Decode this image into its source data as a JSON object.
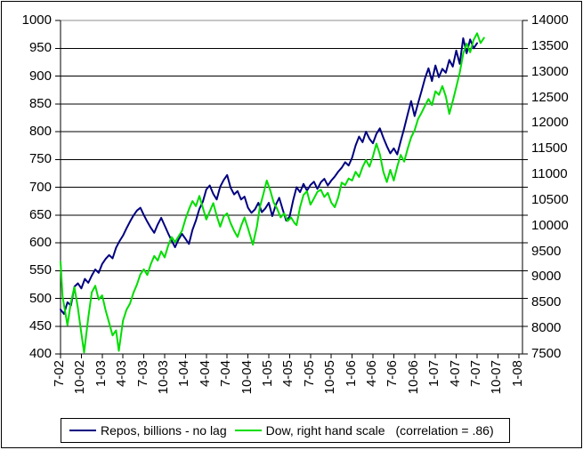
{
  "chart_data": {
    "type": "line",
    "title": "",
    "grid": true,
    "legend_position": "bottom",
    "x_axis": {
      "tick_labels": [
        "7-02",
        "10-02",
        "1-03",
        "4-03",
        "7-03",
        "10-03",
        "1-04",
        "4-04",
        "7-04",
        "10-04",
        "1-05",
        "4-05",
        "7-05",
        "10-05",
        "1-06",
        "4-06",
        "7-06",
        "10-06",
        "1-07",
        "4-07",
        "7-07",
        "10-07",
        "1-08"
      ],
      "tick_unit": "quarterly month-year"
    },
    "left_axis": {
      "min": 400,
      "max": 1000,
      "step": 50,
      "ticks": [
        1000,
        950,
        900,
        850,
        800,
        750,
        700,
        650,
        600,
        550,
        500,
        450,
        400
      ]
    },
    "right_axis": {
      "min": 7500,
      "max": 14000,
      "step": 500,
      "ticks": [
        14000,
        13500,
        13000,
        12500,
        12000,
        11500,
        11000,
        10500,
        10000,
        9500,
        9000,
        8500,
        8000,
        7500
      ]
    },
    "series": [
      {
        "name": "Repos, billions - no lag",
        "color": "#000080",
        "axis": "left",
        "x_unit": "months since Jul-2002",
        "points": [
          [
            0,
            480
          ],
          [
            0.5,
            472
          ],
          [
            1,
            493
          ],
          [
            1.5,
            487
          ],
          [
            2,
            521
          ],
          [
            2.5,
            527
          ],
          [
            3,
            518
          ],
          [
            3.5,
            535
          ],
          [
            4,
            528
          ],
          [
            4.5,
            541
          ],
          [
            5,
            552
          ],
          [
            5.5,
            546
          ],
          [
            6,
            562
          ],
          [
            6.5,
            571
          ],
          [
            7,
            578
          ],
          [
            7.5,
            572
          ],
          [
            8,
            591
          ],
          [
            8.5,
            603
          ],
          [
            9,
            613
          ],
          [
            9.5,
            626
          ],
          [
            10,
            638
          ],
          [
            10.5,
            649
          ],
          [
            11,
            658
          ],
          [
            11.5,
            663
          ],
          [
            12,
            650
          ],
          [
            12.5,
            638
          ],
          [
            13,
            627
          ],
          [
            13.5,
            618
          ],
          [
            14,
            633
          ],
          [
            14.5,
            645
          ],
          [
            15,
            631
          ],
          [
            15.5,
            617
          ],
          [
            16,
            604
          ],
          [
            16.5,
            592
          ],
          [
            17,
            606
          ],
          [
            17.5,
            616
          ],
          [
            18,
            607
          ],
          [
            18.5,
            598
          ],
          [
            19,
            623
          ],
          [
            19.5,
            640
          ],
          [
            20,
            661
          ],
          [
            20.5,
            674
          ],
          [
            21,
            696
          ],
          [
            21.5,
            703
          ],
          [
            22,
            688
          ],
          [
            22.5,
            678
          ],
          [
            23,
            701
          ],
          [
            23.5,
            713
          ],
          [
            24,
            722
          ],
          [
            24.5,
            699
          ],
          [
            25,
            687
          ],
          [
            25.5,
            693
          ],
          [
            26,
            678
          ],
          [
            26.5,
            683
          ],
          [
            27,
            663
          ],
          [
            27.5,
            654
          ],
          [
            28,
            660
          ],
          [
            28.5,
            672
          ],
          [
            29,
            655
          ],
          [
            29.5,
            662
          ],
          [
            30,
            672
          ],
          [
            30.5,
            648
          ],
          [
            31,
            668
          ],
          [
            31.5,
            681
          ],
          [
            32,
            660
          ],
          [
            32.5,
            640
          ],
          [
            33,
            647
          ],
          [
            33.5,
            676
          ],
          [
            34,
            700
          ],
          [
            34.5,
            691
          ],
          [
            35,
            706
          ],
          [
            35.5,
            694
          ],
          [
            36,
            704
          ],
          [
            36.5,
            710
          ],
          [
            37,
            697
          ],
          [
            37.5,
            709
          ],
          [
            38,
            715
          ],
          [
            38.5,
            703
          ],
          [
            39,
            712
          ],
          [
            39.5,
            719
          ],
          [
            40,
            728
          ],
          [
            40.5,
            735
          ],
          [
            41,
            745
          ],
          [
            41.5,
            739
          ],
          [
            42,
            753
          ],
          [
            42.5,
            775
          ],
          [
            43,
            791
          ],
          [
            43.5,
            781
          ],
          [
            44,
            800
          ],
          [
            44.5,
            787
          ],
          [
            45,
            779
          ],
          [
            45.5,
            796
          ],
          [
            46,
            806
          ],
          [
            46.5,
            789
          ],
          [
            47,
            774
          ],
          [
            47.5,
            761
          ],
          [
            48,
            770
          ],
          [
            48.5,
            759
          ],
          [
            49,
            783
          ],
          [
            49.5,
            806
          ],
          [
            50,
            831
          ],
          [
            50.5,
            855
          ],
          [
            51,
            828
          ],
          [
            51.5,
            851
          ],
          [
            52,
            873
          ],
          [
            52.5,
            896
          ],
          [
            53,
            914
          ],
          [
            53.5,
            891
          ],
          [
            54,
            919
          ],
          [
            54.5,
            898
          ],
          [
            55,
            913
          ],
          [
            55.5,
            906
          ],
          [
            56,
            929
          ],
          [
            56.5,
            917
          ],
          [
            57,
            946
          ],
          [
            57.5,
            922
          ],
          [
            58,
            968
          ],
          [
            58.5,
            941
          ],
          [
            59,
            966
          ],
          [
            59.5,
            950
          ],
          [
            60,
            959
          ]
        ]
      },
      {
        "name": "Dow, right hand scale",
        "color": "#00DD00",
        "axis": "right",
        "x_unit": "months since Jul-2002",
        "points": [
          [
            0,
            9300
          ],
          [
            0.3,
            8620
          ],
          [
            1,
            8060
          ],
          [
            1.5,
            8510
          ],
          [
            2,
            8800
          ],
          [
            2.5,
            8400
          ],
          [
            3,
            7900
          ],
          [
            3.4,
            7530
          ],
          [
            4,
            8210
          ],
          [
            4.5,
            8700
          ],
          [
            5,
            8830
          ],
          [
            5.5,
            8560
          ],
          [
            6,
            8640
          ],
          [
            6.5,
            8350
          ],
          [
            7,
            8110
          ],
          [
            7.5,
            7860
          ],
          [
            8,
            7960
          ],
          [
            8.4,
            7560
          ],
          [
            9,
            8150
          ],
          [
            9.5,
            8360
          ],
          [
            10,
            8480
          ],
          [
            10.5,
            8690
          ],
          [
            11,
            8850
          ],
          [
            11.5,
            9050
          ],
          [
            12,
            9150
          ],
          [
            12.5,
            9040
          ],
          [
            13,
            9250
          ],
          [
            13.5,
            9410
          ],
          [
            14,
            9320
          ],
          [
            14.5,
            9500
          ],
          [
            15,
            9380
          ],
          [
            15.5,
            9610
          ],
          [
            16,
            9780
          ],
          [
            16.5,
            9680
          ],
          [
            17,
            9790
          ],
          [
            17.5,
            9900
          ],
          [
            18,
            10130
          ],
          [
            18.5,
            10320
          ],
          [
            19,
            10480
          ],
          [
            19.5,
            10380
          ],
          [
            20,
            10580
          ],
          [
            20.5,
            10350
          ],
          [
            21,
            10120
          ],
          [
            21.5,
            10280
          ],
          [
            22,
            10440
          ],
          [
            22.5,
            10190
          ],
          [
            23,
            9980
          ],
          [
            23.5,
            10180
          ],
          [
            24,
            10240
          ],
          [
            24.5,
            10050
          ],
          [
            25,
            9900
          ],
          [
            25.5,
            9780
          ],
          [
            26,
            9990
          ],
          [
            26.5,
            10160
          ],
          [
            27,
            9950
          ],
          [
            27.7,
            9630
          ],
          [
            28.3,
            9990
          ],
          [
            28.7,
            10360
          ],
          [
            29.2,
            10610
          ],
          [
            29.7,
            10880
          ],
          [
            30.2,
            10690
          ],
          [
            30.7,
            10450
          ],
          [
            31.2,
            10330
          ],
          [
            31.7,
            10160
          ],
          [
            32.2,
            10240
          ],
          [
            32.7,
            10090
          ],
          [
            33.2,
            10160
          ],
          [
            33.7,
            10050
          ],
          [
            34,
            10010
          ],
          [
            34.5,
            10360
          ],
          [
            35,
            10600
          ],
          [
            35.5,
            10670
          ],
          [
            36,
            10410
          ],
          [
            36.5,
            10530
          ],
          [
            37,
            10660
          ],
          [
            37.5,
            10700
          ],
          [
            38,
            10560
          ],
          [
            38.5,
            10640
          ],
          [
            39,
            10450
          ],
          [
            39.5,
            10360
          ],
          [
            40,
            10550
          ],
          [
            40.5,
            10840
          ],
          [
            41,
            10790
          ],
          [
            41.5,
            10920
          ],
          [
            42,
            10880
          ],
          [
            42.5,
            11050
          ],
          [
            43,
            10950
          ],
          [
            43.5,
            11140
          ],
          [
            44,
            11280
          ],
          [
            44.5,
            11150
          ],
          [
            45,
            11350
          ],
          [
            45.5,
            11600
          ],
          [
            46,
            11390
          ],
          [
            46.5,
            11050
          ],
          [
            47,
            10850
          ],
          [
            47.5,
            11090
          ],
          [
            48,
            10880
          ],
          [
            48.5,
            11150
          ],
          [
            49,
            11380
          ],
          [
            49.5,
            11250
          ],
          [
            50,
            11500
          ],
          [
            50.5,
            11720
          ],
          [
            51,
            11860
          ],
          [
            51.5,
            12080
          ],
          [
            52,
            12200
          ],
          [
            52.5,
            12340
          ],
          [
            53,
            12470
          ],
          [
            53.5,
            12350
          ],
          [
            54,
            12620
          ],
          [
            54.5,
            12550
          ],
          [
            55,
            12720
          ],
          [
            55.5,
            12520
          ],
          [
            56,
            12180
          ],
          [
            56.5,
            12430
          ],
          [
            57,
            12700
          ],
          [
            57.5,
            12980
          ],
          [
            58,
            13350
          ],
          [
            58.5,
            13550
          ],
          [
            59,
            13380
          ],
          [
            59.5,
            13620
          ],
          [
            60,
            13750
          ],
          [
            60.5,
            13560
          ],
          [
            61,
            13660
          ]
        ]
      }
    ],
    "legend": {
      "repos_label": "Repos, billions - no lag",
      "dow_label": "Dow, right hand scale",
      "correlation_note": "(correlation = .86)"
    }
  },
  "colors": {
    "repos_line": "#000080",
    "dow_line": "#00DD00",
    "grid_line": "#000000",
    "plot_top_border": "#8c8c8c",
    "background": "#ffffff"
  }
}
